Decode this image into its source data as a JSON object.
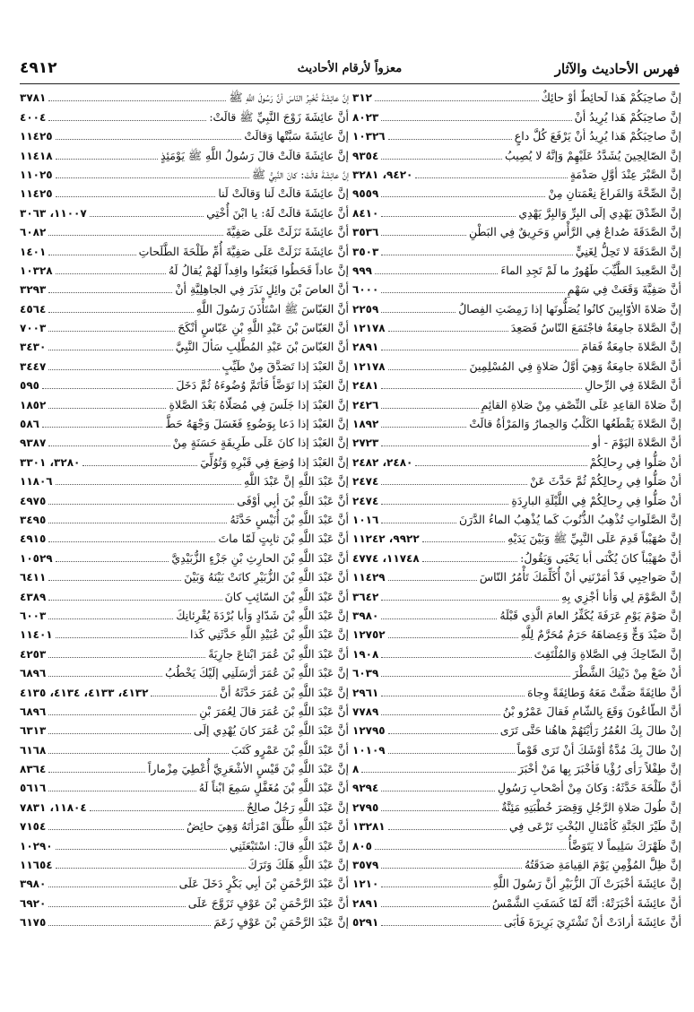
{
  "header": {
    "title": "فهرس الأحاديث والآثار",
    "subtitle": "معزواً لأرقام الأحاديث",
    "page_number": "٤٩١٢"
  },
  "right_column": [
    {
      "text": "إنَّ صاحِبَكُمْ هَذا لَحائِطٌ أوْ حائِكٌ",
      "refs": "٣١٢"
    },
    {
      "text": "إنَّ صاحِبَكُمْ هَذا يُرِيدُ أنْ",
      "refs": "٨٠٢٣"
    },
    {
      "text": "إنَّ صاحِبَكُمْ هَذا يُرِيدُ أنْ يَرْفَعَ كُلَّ داعٍ",
      "refs": "١٠٣٢٦"
    },
    {
      "text": "إنَّ الصّالِحِينَ يُشَدَّدُ عَلَيْهِمْ وَإنَّهُ لا يُصِيبُ",
      "refs": "٩٣٥٤"
    },
    {
      "text": "إنَّ الصَّبْرَ عِنْدَ أوَّلِ صَدْمَةٍ",
      "refs": "٩٤٢٠، ٣٢٨١"
    },
    {
      "text": "إنَّ الصِّحَّةَ وَالفَراغَ نِعْمَتانِ مِنْ",
      "refs": "٩٥٥٩"
    },
    {
      "text": "إنَّ الصِّدْقَ يَهْدِي إلَى البِرِّ وَالبِرَّ يَهْدِي",
      "refs": "٨٤١٠"
    },
    {
      "text": "إنَّ الصَّدَقَةَ صُداعٌ فِي الرَّأْسِ وَحَرِيقٌ فِي البَطْنِ",
      "refs": "٣٥٣٦"
    },
    {
      "text": "إنَّ الصَّدَقَةَ لا تَحِلُّ لِغَنِيٍّ",
      "refs": "٣٥٠٣"
    },
    {
      "text": "إنَّ الصَّعِيدَ الطَّيِّبَ طَهُورٌ ما لَمْ تَجِدِ الماءَ",
      "refs": "٩٩٩"
    },
    {
      "text": "أنَّ صَفِيَّةَ وَقَعَتْ فِي سَهْمِ",
      "refs": "٦٠٠٠"
    },
    {
      "text": "إنَّ صَلاةَ الأوّابِينَ كانُوا يُصَلُّونَها إذا رَمِضَتِ الفِصالُ",
      "refs": "٢٢٥٩"
    },
    {
      "text": "إنَّ الصَّلاةَ جامِعَةٌ فاجْتَمَعَ النّاسُ فَصَعِدَ",
      "refs": "١٢١٧٨"
    },
    {
      "text": "إنَّ الصَّلاةَ جامِعَةٌ فَقامَ",
      "refs": "٢٨٩١"
    },
    {
      "text": "أنَّ الصَّلاةَ جامِعَةٌ وَهِيَ أوَّلُ صَلاةٍ فِي المُسْلِمِينَ",
      "refs": "١٢١٧٨"
    },
    {
      "text": "أنَّ الصَّلاةَ فِي الرِّحالِ",
      "refs": "٢٤٨١"
    },
    {
      "text": "إنَّ صَلاةَ القاعِدِ عَلَى النِّصْفِ مِنْ صَلاةِ القائِمِ",
      "refs": "٢٤٢٦"
    },
    {
      "text": "إنَّ الصَّلاةَ يَقْطَعُها الكَلْبُ وَالحِمارُ وَالمَرْأةُ قالَتْ",
      "refs": "١٨٩٢"
    },
    {
      "text": "أنَّ الصَّلاةَ اليَوْمَ - أو",
      "refs": "٢٧٢٣"
    },
    {
      "text": "أنْ صَلُّوا فِي رِحالِكُمْ",
      "refs": "٢٤٨٠، ٢٤٨٢"
    },
    {
      "text": "أنْ صَلُّوا فِي رِحالِكُمْ ثُمَّ حَدَّثَ عَنْ",
      "refs": "٢٤٧٤"
    },
    {
      "text": "أنْ صَلُّوا فِي رِحالِكُمْ فِي اللَّيْلَةِ البارِدَةِ",
      "refs": "٢٤٧٤"
    },
    {
      "text": "إنَّ الصَّلَواتِ تُذْهِبُ الذُّنُوبَ كَما يُذْهِبُ الماءُ الدَّرَنَ",
      "refs": "١٠١٦"
    },
    {
      "text": "إنَّ صُهَيْباً قَدِمَ عَلَى النَّبِيِّ ﷺ وَبَيْنَ يَدَيْهِ",
      "refs": "٩٩٢٢، ١١٢٤٢"
    },
    {
      "text": "أنَّ صُهَيْباً كانَ يُكْنَى أبا يَحْيَى وَيَقُولُ:",
      "refs": "١١٧٤٨، ٤٧٧٤"
    },
    {
      "text": "إنَّ صَواحِبِي قَدْ أمَرْنَنِي أنْ أُكَلِّمَكَ تَأْمُرُ النّاسَ",
      "refs": "١١٤٢٩"
    },
    {
      "text": "إنَّ الصَّوْمَ لِي وَأنا أجْزِي بِهِ",
      "refs": "٣٦٤٢"
    },
    {
      "text": "إنَّ صَوْمَ يَوْمِ عَرَفَةَ يُكَفِّرُ العامَ الَّذِي قَبْلَهُ",
      "refs": "٣٩٨٠"
    },
    {
      "text": "إنَّ صَيْدَ وَجٍّ وَعِضاهَهُ حَرَمٌ مُحَرَّمٌ لِلَّهِ",
      "refs": "١٢٧٥٢"
    },
    {
      "text": "إنَّ الضّاحِكَ فِي الصَّلاةِ وَالمُلْتَفِتَ",
      "refs": "١٩٠٨"
    },
    {
      "text": "أنْ ضَعْ مِنْ دَيْنِكَ الشَّطْرَ",
      "refs": "٦٠٣٩"
    },
    {
      "text": "أنَّ طائِفَةً صَفَّتْ مَعَهُ وَطائِفَةً وِجاهَ",
      "refs": "٢٩٦١"
    },
    {
      "text": "أنَّ الطّاعُونَ وَقَعَ بِالشّامِ فَقالَ عَمْرُو بْنُ",
      "refs": "٧٧٨٩"
    },
    {
      "text": "إنْ طالَ بِكَ العُمُرُ رَأيْتَهُمْ هاهُنا حَتَّى تَرَى",
      "refs": "١٢٧٩٥"
    },
    {
      "text": "إنْ طالَ بِكَ مُدَّةٌ أوْشَكَ أنْ تَرَى قَوْماً",
      "refs": "١٠١٠٩"
    },
    {
      "text": "إنَّ طِفْلاً رَأى رُؤْيا فَأخْبَرَ بِها مَنْ أخْبَرَ",
      "refs": "٨"
    },
    {
      "text": "أنَّ طَلْحَةَ حَدَّثَهُ: وَكانَ مِنْ أصْحابِ رَسُولِ",
      "refs": "٩٢٩٤"
    },
    {
      "text": "إنَّ طُولَ صَلاةِ الرَّجُلِ وَقِصَرَ خُطْبَتِهِ مَئِنَّةٌ",
      "refs": "٢٧٩٥"
    },
    {
      "text": "إنَّ طَيْرَ الجَنَّةِ كَأمْثالِ البُخْتِ تَرْعَى فِي",
      "refs": "١٣٢٨١"
    },
    {
      "text": "إنَّ ظَهْرَكَ سَلِيماً لا يَتَوَضَّأُ",
      "refs": "٨٠٥"
    },
    {
      "text": "إنَّ ظِلَّ المُؤْمِنِ يَوْمَ القِيامَةِ صَدَقَتُهُ",
      "refs": "٣٥٧٩"
    },
    {
      "text": "إنَّ عائِشَةَ أخْبَرَتْ آلَ الزُّبَيْرِ أنَّ رَسُولَ اللَّهِ",
      "refs": "١٢١٠"
    },
    {
      "text": "أنَّ عائِشَةَ أخْبَرَتْهُ: أنَّهُ لَمّا كَسَفَتِ الشَّمْسُ",
      "refs": "٢٨٩١"
    },
    {
      "text": "أنَّ عائِشَةَ أرادَتْ أنْ تَشْتَرِيَ بَرِيرَةَ فَأبَى",
      "refs": "٥٢٩١"
    }
  ],
  "left_column": [
    {
      "text": "إنَّ عائِشَةَ تُخْبِرُ النّاسَ أنَّ رَسُولَ اللَّهِ ﷺ",
      "refs": "٣٧٨١"
    },
    {
      "text": "أنَّ عائِشَةَ زَوْجَ النَّبِيِّ ﷺ قالَتْ:",
      "refs": "٤٠٠٤"
    },
    {
      "text": "إنَّ عائِشَةَ سَبَّتْها وَقالَتْ",
      "refs": "١١٤٢٥"
    },
    {
      "text": "إنَّ عائِشَةَ قالَتْ قالَ رَسُولُ اللَّهِ ﷺ يَوْمَئِذٍ",
      "refs": "١١٤١٨"
    },
    {
      "text": "إنَّ عائِشَةَ قالَتْ: كانَ النَّبِيُّ ﷺ",
      "refs": "١١٠٢٥"
    },
    {
      "text": "إنَّ عائِشَةَ قالَتْ لَنا وَقالَتْ لَنا",
      "refs": "١١٤٢٥"
    },
    {
      "text": "أنَّ عائِشَةَ قالَتْ لَهُ: يا ابْنَ أُخْتِي",
      "refs": "١١٠٠٧، ٣٠٦٣"
    },
    {
      "text": "أنَّ عائِشَةَ نَزَلَتْ عَلَى صَفِيَّةَ",
      "refs": "٦٠٨٢"
    },
    {
      "text": "أنَّ عائِشَةَ نَزَلَتْ عَلَى صَفِيَّةَ أُمِّ طَلْحَةَ الطَّلَحاتِ",
      "refs": "١٤٠١"
    },
    {
      "text": "إنَّ عاداً قَحَطُوا فَبَعَثُوا وافِداً لَهُمْ يُقالُ لَهُ",
      "refs": "١٠٣٢٨"
    },
    {
      "text": "أنَّ العاصَ بْنَ وائِلٍ نَذَرَ فِي الجاهِلِيَّةِ أنْ",
      "refs": "٣٢٩٣"
    },
    {
      "text": "أنَّ العَبّاسَ ﷺ اسْتَأْذَنَ رَسُولَ اللَّهِ",
      "refs": "٤٥٦٤"
    },
    {
      "text": "أنَّ العَبّاسَ بْنَ عَبْدِ اللَّهِ بْنِ عَبّاسٍ أنْكَحَ",
      "refs": "٧٠٠٣"
    },
    {
      "text": "أنَّ العَبّاسَ بْنَ عَبْدِ المُطَّلِبِ سَألَ النَّبِيَّ",
      "refs": "٣٤٣٠"
    },
    {
      "text": "إنَّ العَبْدَ إذا تَصَدَّقَ مِنْ طَيِّبٍ",
      "refs": "٣٤٤٧"
    },
    {
      "text": "إنَّ العَبْدَ إذا تَوَضَّأَ فَأتَمَّ وُضُوءَهُ ثُمَّ دَخَلَ",
      "refs": "٥٩٥"
    },
    {
      "text": "إنَّ العَبْدَ إذا جَلَسَ فِي مُصَلّاهُ بَعْدَ الصَّلاةِ",
      "refs": "١٨٥٢"
    },
    {
      "text": "إنَّ العَبْدَ إذا دَعا بِوَضُوءٍ فَغَسَلَ وَجْهَهُ حَطَّ",
      "refs": "٥٨٦"
    },
    {
      "text": "إنَّ العَبْدَ إذا كانَ عَلَى طَرِيقَةٍ حَسَنَةٍ مِنْ",
      "refs": "٩٣٨٧"
    },
    {
      "text": "إنَّ العَبْدَ إذا وُضِعَ فِي قَبْرِهِ وَتُوُلِّيَ",
      "refs": "٣٢٨٠، ٣٣٠١"
    },
    {
      "text": "إنَّ عَبْدَ اللَّهِ إنَّ عَبْدَ اللَّهِ",
      "refs": "١١٨٠٦"
    },
    {
      "text": "أنَّ عَبْدَ اللَّهِ بْنَ أبِي أوْفَى",
      "refs": "٤٩٧٥"
    },
    {
      "text": "أنَّ عَبْدَ اللَّهِ بْنَ أُنَيْسٍ حَدَّثَهُ",
      "refs": "٣٤٩٥"
    },
    {
      "text": "أنَّ عَبْدَ اللَّهِ بْنَ ثابِتٍ لَمّا ماتَ",
      "refs": "٤٩١٥"
    },
    {
      "text": "أنَّ عَبْدَ اللَّهِ بْنَ الحارِثِ بْنِ جَزْءٍ الزُّبَيْدِيَّ",
      "refs": "١٠٥٢٩"
    },
    {
      "text": "أنَّ عَبْدَ اللَّهِ بْنَ الزُّبَيْرِ كانَتْ بَيْنَهُ وَبَيْنَ",
      "refs": "٦٤١١"
    },
    {
      "text": "أنَّ عَبْدَ اللَّهِ بْنَ السّائِبِ كانَ",
      "refs": "٤٣٨٩"
    },
    {
      "text": "إنَّ عَبْدَ اللَّهِ بْنَ شَدّادٍ وَأبا بُرْدَةَ يُقْرِئانِكَ",
      "refs": "٦٠٠٣"
    },
    {
      "text": "إنَّ عَبْدَ اللَّهِ بْنَ عُبَيْدِ اللَّهِ حَدَّثَنِي كَذا",
      "refs": "١١٤٠١"
    },
    {
      "text": "أنَّ عَبْدَ اللَّهِ بْنَ عُمَرَ ابْتاعَ جارِيَةً",
      "refs": "٤٢٥٣"
    },
    {
      "text": "إنَّ عَبْدَ اللَّهِ بْنَ عُمَرَ أرْسَلَنِي إلَيْكَ يَخْطُبُ",
      "refs": "٦٨٩٦"
    },
    {
      "text": "إنَّ عَبْدَ اللَّهِ بْنَ عُمَرَ حَدَّثَهُ أنَّ",
      "refs": "٤١٣٢، ٤١٣٣، ٤١٣٤، ٤١٣٥"
    },
    {
      "text": "أنَّ عَبْدَ اللَّهِ بْنَ عُمَرَ قالَ لِعُمَرَ بْنِ",
      "refs": "٦٨٩٦"
    },
    {
      "text": "أنَّ عَبْدَ اللَّهِ بْنَ عُمَرَ كانَ يُهْدِي إلَى",
      "refs": "٦٣١٣"
    },
    {
      "text": "أنَّ عَبْدَ اللَّهِ بْنَ عَمْرٍو كَتَبَ",
      "refs": "٦١٦٨"
    },
    {
      "text": "إنَّ عَبْدَ اللَّهِ بْنَ قَيْسٍ الأشْعَرِيَّ أُعْطِيَ مِزْماراً",
      "refs": "٨٣٦٤"
    },
    {
      "text": "أنَّ عَبْدَ اللَّهِ بْنَ مُغَفَّلٍ سَمِعَ ابْناً لَهُ",
      "refs": "٥٦١٦"
    },
    {
      "text": "إنَّ عَبْدَ اللَّهِ رَجُلٌ صالِحٌ",
      "refs": "١١٨٠٤، ٧٨٣١"
    },
    {
      "text": "أنَّ عَبْدَ اللَّهِ طَلَّقَ امْرَأتَهُ وَهِيَ حائِضٌ",
      "refs": "٧١٥٤"
    },
    {
      "text": "إنَّ عَبْدَ اللَّهِ قالَ: اسْتَبْعَثَنِي",
      "refs": "١٠٢٩٠"
    },
    {
      "text": "إنَّ عَبْدَ اللَّهِ هَلَكَ وَتَرَكَ",
      "refs": "١١٦٥٤"
    },
    {
      "text": "أنَّ عَبْدَ الرَّحْمَنِ بْنَ أبِي بَكْرٍ دَخَلَ عَلَى",
      "refs": "٣٩٨٠"
    },
    {
      "text": "أنَّ عَبْدَ الرَّحْمَنِ بْنَ عَوْفٍ تَزَوَّجَ عَلَى",
      "refs": "٦٩٢٠"
    },
    {
      "text": "إنَّ عَبْدَ الرَّحْمَنِ بْنَ عَوْفٍ زَعَمَ",
      "refs": "٦١٧٥"
    }
  ]
}
